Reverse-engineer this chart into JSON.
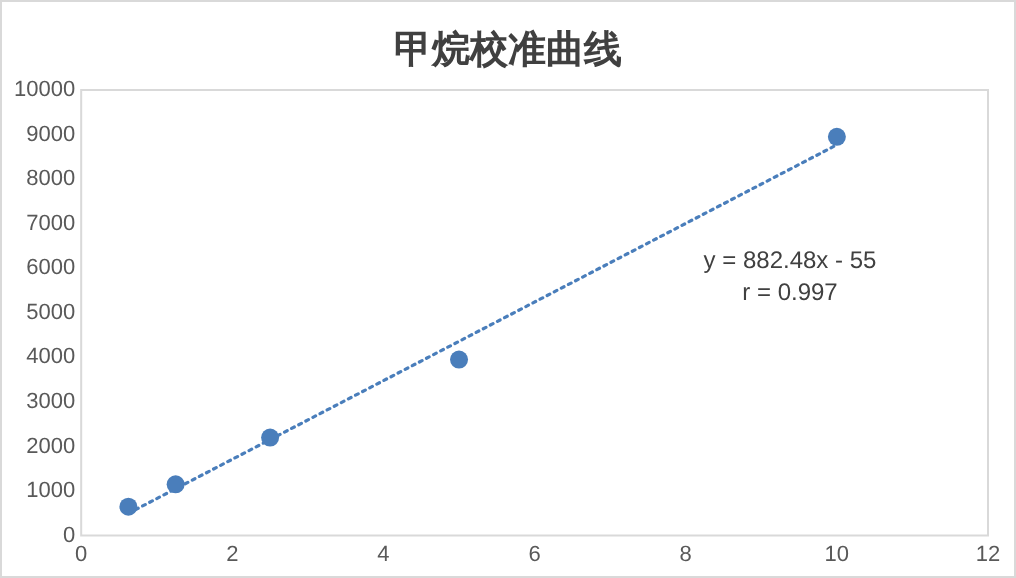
{
  "chart_data": {
    "type": "scatter",
    "title": "甲烷校准曲线",
    "series": [
      {
        "type": "scatter",
        "color": "#4a7ebb",
        "x": [
          0.625,
          1.25,
          2.5,
          5,
          10
        ],
        "values": [
          650,
          1150,
          2200,
          3950,
          8950
        ],
        "marker": "circle"
      },
      {
        "type": "line",
        "color": "#4a7ebb",
        "x": [
          0.625,
          10
        ],
        "values": [
          500,
          8770
        ],
        "marker": "none",
        "line_style": "dotted"
      }
    ],
    "xlim": [
      0,
      12
    ],
    "xticks": [
      0,
      2,
      4,
      6,
      8,
      10,
      12
    ],
    "ylim": [
      0,
      10000
    ],
    "yticks": [
      0,
      1000,
      2000,
      3000,
      4000,
      5000,
      6000,
      7000,
      8000,
      9000,
      10000
    ],
    "grid": false,
    "legend": false,
    "annotations": [
      "y = 882.48x - 55",
      "r = 0.997"
    ]
  }
}
